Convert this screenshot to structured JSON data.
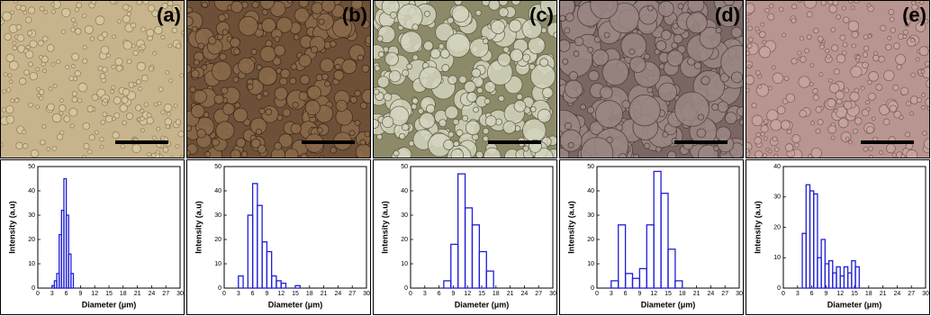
{
  "chart_data": [
    {
      "type": "histogram",
      "panel_label": "(a)",
      "x_label": "Diameter (μm)",
      "y_label": "Intensity (a.u)",
      "color": "#1f1fd6",
      "bins": [
        3,
        3.5,
        4,
        4.5,
        5,
        5.5,
        6,
        6.5,
        7,
        7.5
      ],
      "values": [
        1,
        3,
        6,
        22,
        32,
        45,
        30,
        14,
        6
      ],
      "xlim": [
        0,
        30
      ],
      "xticks": [
        0,
        3,
        6,
        9,
        12,
        15,
        18,
        21,
        24,
        27,
        30
      ],
      "ylim": [
        0,
        50
      ],
      "yticks": [
        0,
        10,
        20,
        30,
        40,
        50
      ]
    },
    {
      "type": "histogram",
      "panel_label": "(b)",
      "x_label": "Diameter (μm)",
      "y_label": "Intensity (a.u)",
      "color": "#1f1fd6",
      "bins": [
        3,
        4,
        5,
        6,
        7,
        8,
        9,
        10,
        11,
        12,
        13,
        14,
        15,
        16
      ],
      "values": [
        5,
        0,
        30,
        43,
        34,
        19,
        15,
        5,
        3,
        2,
        0,
        0,
        1
      ],
      "xlim": [
        0,
        30
      ],
      "xticks": [
        0,
        3,
        6,
        9,
        12,
        15,
        18,
        21,
        24,
        27,
        30
      ],
      "ylim": [
        0,
        50
      ],
      "yticks": [
        0,
        10,
        20,
        30,
        40,
        50
      ]
    },
    {
      "type": "histogram",
      "panel_label": "(c)",
      "x_label": "Diameter (μm)",
      "y_label": "Intensity (a.u)",
      "color": "#1f1fd6",
      "bins": [
        7,
        8.5,
        10,
        11.5,
        13,
        14.5,
        16,
        17.5
      ],
      "values": [
        3,
        18,
        47,
        33,
        26,
        15,
        7
      ],
      "xlim": [
        0,
        30
      ],
      "xticks": [
        0,
        3,
        6,
        9,
        12,
        15,
        18,
        21,
        24,
        27,
        30
      ],
      "ylim": [
        0,
        50
      ],
      "yticks": [
        0,
        10,
        20,
        30,
        40,
        50
      ]
    },
    {
      "type": "histogram",
      "panel_label": "(d)",
      "x_label": "Diameter (μm)",
      "y_label": "Intensity (a.u)",
      "color": "#1f1fd6",
      "bins": [
        3,
        4.5,
        6,
        7.5,
        9,
        10.5,
        12,
        13.5,
        15,
        16.5,
        18
      ],
      "values": [
        3,
        26,
        6,
        4,
        8,
        26,
        48,
        39,
        16,
        3
      ],
      "xlim": [
        0,
        30
      ],
      "xticks": [
        0,
        3,
        6,
        9,
        12,
        15,
        18,
        21,
        24,
        27,
        30
      ],
      "ylim": [
        0,
        50
      ],
      "yticks": [
        0,
        10,
        20,
        30,
        40,
        50
      ]
    },
    {
      "type": "histogram",
      "panel_label": "(e)",
      "x_label": "Diameter (μm)",
      "y_label": "Intensity (a.u)",
      "color": "#1f1fd6",
      "bins": [
        4,
        4.8,
        5.6,
        6.4,
        7.2,
        8,
        8.8,
        9.6,
        10.4,
        11.2,
        12,
        12.8,
        13.6,
        14.4,
        15.2,
        16
      ],
      "values": [
        18,
        34,
        32,
        31,
        10,
        16,
        8,
        9,
        5,
        7,
        4,
        7,
        5,
        9,
        7
      ],
      "xlim": [
        0,
        30
      ],
      "xticks": [
        0,
        3,
        6,
        9,
        12,
        15,
        18,
        21,
        24,
        27,
        30
      ],
      "ylim": [
        0,
        40
      ],
      "yticks": [
        0,
        10,
        20,
        30,
        40
      ]
    }
  ]
}
